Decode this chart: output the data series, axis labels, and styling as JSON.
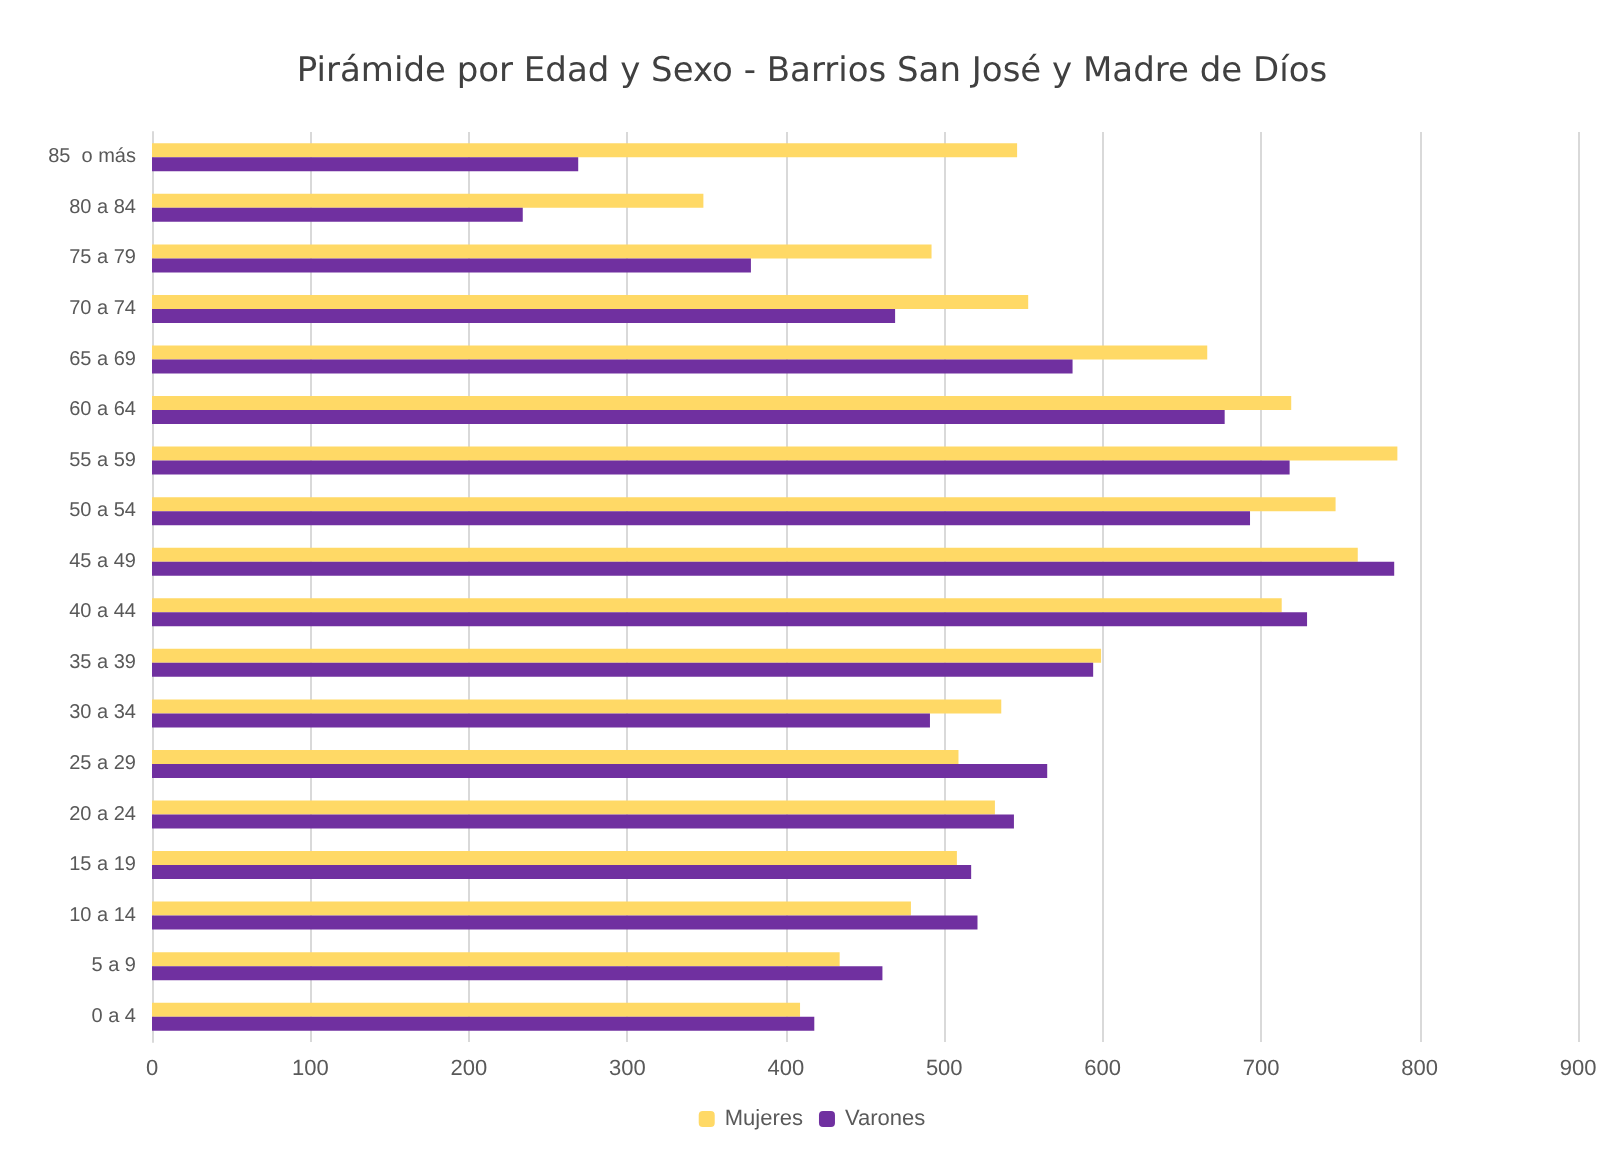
{
  "chart_data": {
    "type": "bar",
    "orientation": "horizontal",
    "title": "Pirámide por Edad y Sexo - Barrios San José y Madre de Díos",
    "categories": [
      "85  o más",
      "80 a 84",
      "75 a 79",
      "70 a 74",
      "65 a 69",
      "60 a 64",
      "55 a 59",
      "50 a 54",
      "45 a 49",
      "40 a 44",
      "35 a 39",
      "30 a 34",
      "25 a 29",
      "20 a 24",
      "15 a 19",
      "10 a 14",
      "5 a 9",
      "0 a 4"
    ],
    "series": [
      {
        "name": "Mujeres",
        "color": "#ffd966",
        "values": [
          546,
          348,
          492,
          553,
          666,
          719,
          786,
          747,
          761,
          713,
          599,
          536,
          509,
          532,
          508,
          479,
          434,
          409
        ]
      },
      {
        "name": "Varones",
        "color": "#7030a0",
        "values": [
          269,
          234,
          378,
          469,
          581,
          677,
          718,
          693,
          784,
          729,
          594,
          491,
          565,
          544,
          517,
          521,
          461,
          418
        ]
      }
    ],
    "xlim": [
      0,
      900
    ],
    "xticks": [
      0,
      100,
      200,
      300,
      400,
      500,
      600,
      700,
      800,
      900
    ],
    "grid": "x",
    "legend": "bottom"
  }
}
